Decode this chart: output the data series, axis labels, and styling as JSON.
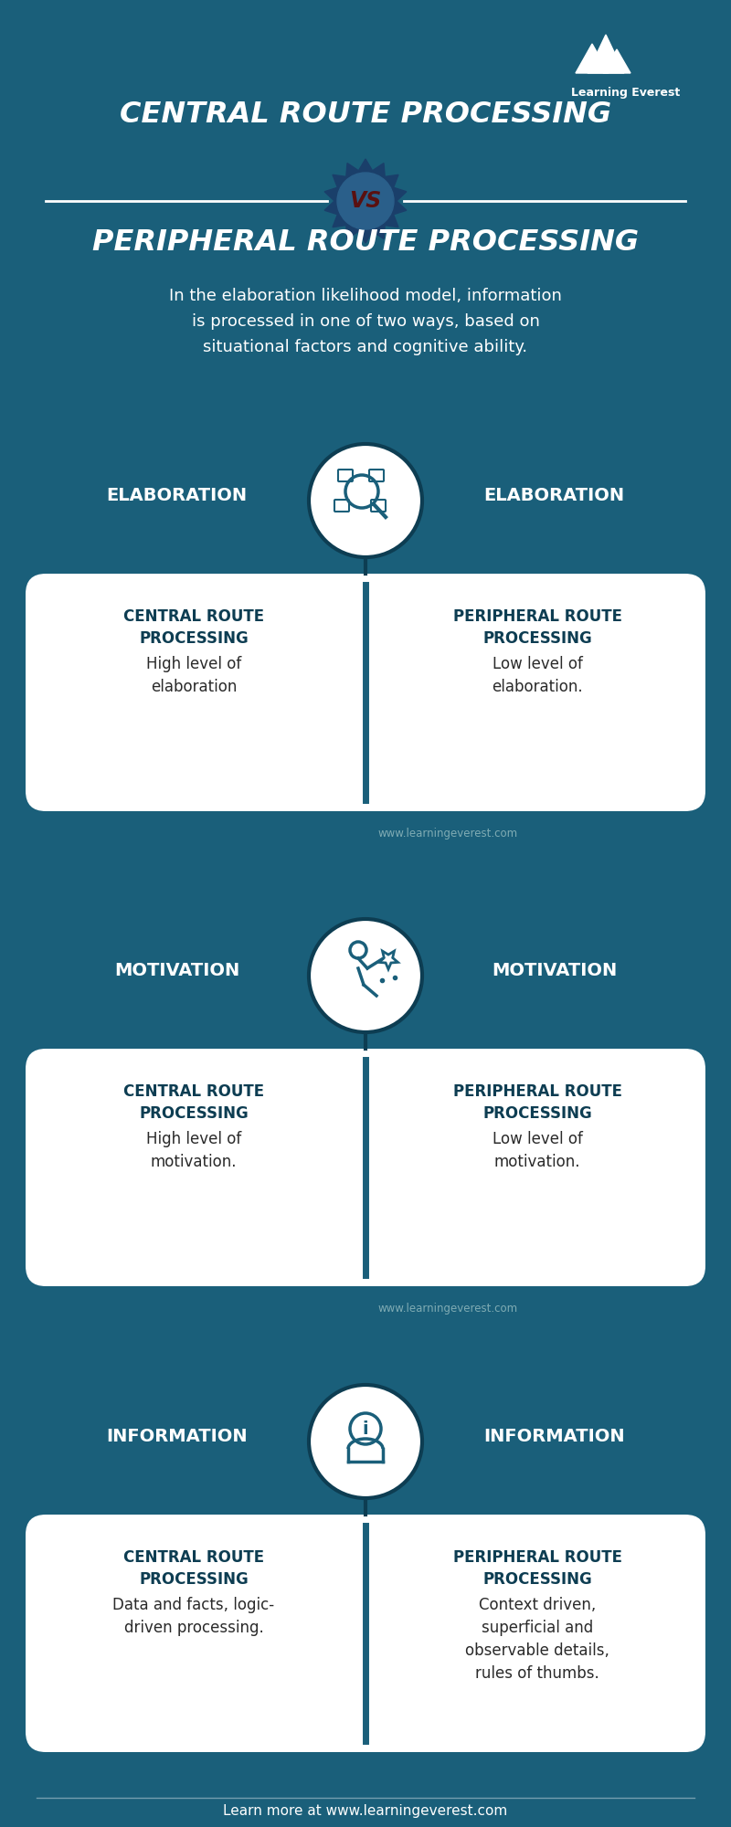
{
  "bg_color": "#1a5f7a",
  "white": "#ffffff",
  "dark_blue": "#0d3d52",
  "title1": "CENTRAL ROUTE PROCESSING",
  "vs_text": "VS",
  "title2": "PERIPHERAL ROUTE PROCESSING",
  "subtitle": "In the elaboration likelihood model, information\nis processed in one of two ways, based on\nsituational factors and cognitive ability.",
  "sections": [
    {
      "label": "ELABORATION",
      "left_title": "CENTRAL ROUTE\nPROCESSING",
      "left_body": "High level of\nelaboration",
      "right_title": "PERIPHERAL ROUTE\nPROCESSING",
      "right_body": "Low level of\nelaboration.",
      "watermark": "www.learningeverest.com"
    },
    {
      "label": "MOTIVATION",
      "left_title": "CENTRAL ROUTE\nPROCESSING",
      "left_body": "High level of\nmotivation.",
      "right_title": "PERIPHERAL ROUTE\nPROCESSING",
      "right_body": "Low level of\nmotivation.",
      "watermark": "www.learningeverest.com"
    },
    {
      "label": "INFORMATION",
      "left_title": "CENTRAL ROUTE\nPROCESSING",
      "left_body": "Data and facts, logic-\ndriven processing.",
      "right_title": "PERIPHERAL ROUTE\nPROCESSING",
      "right_body": "Context driven,\nsuperficial and\nobservable details,\nrules of thumbs.",
      "watermark": null
    }
  ],
  "footer": "Learn more at www.learningeverest.com"
}
